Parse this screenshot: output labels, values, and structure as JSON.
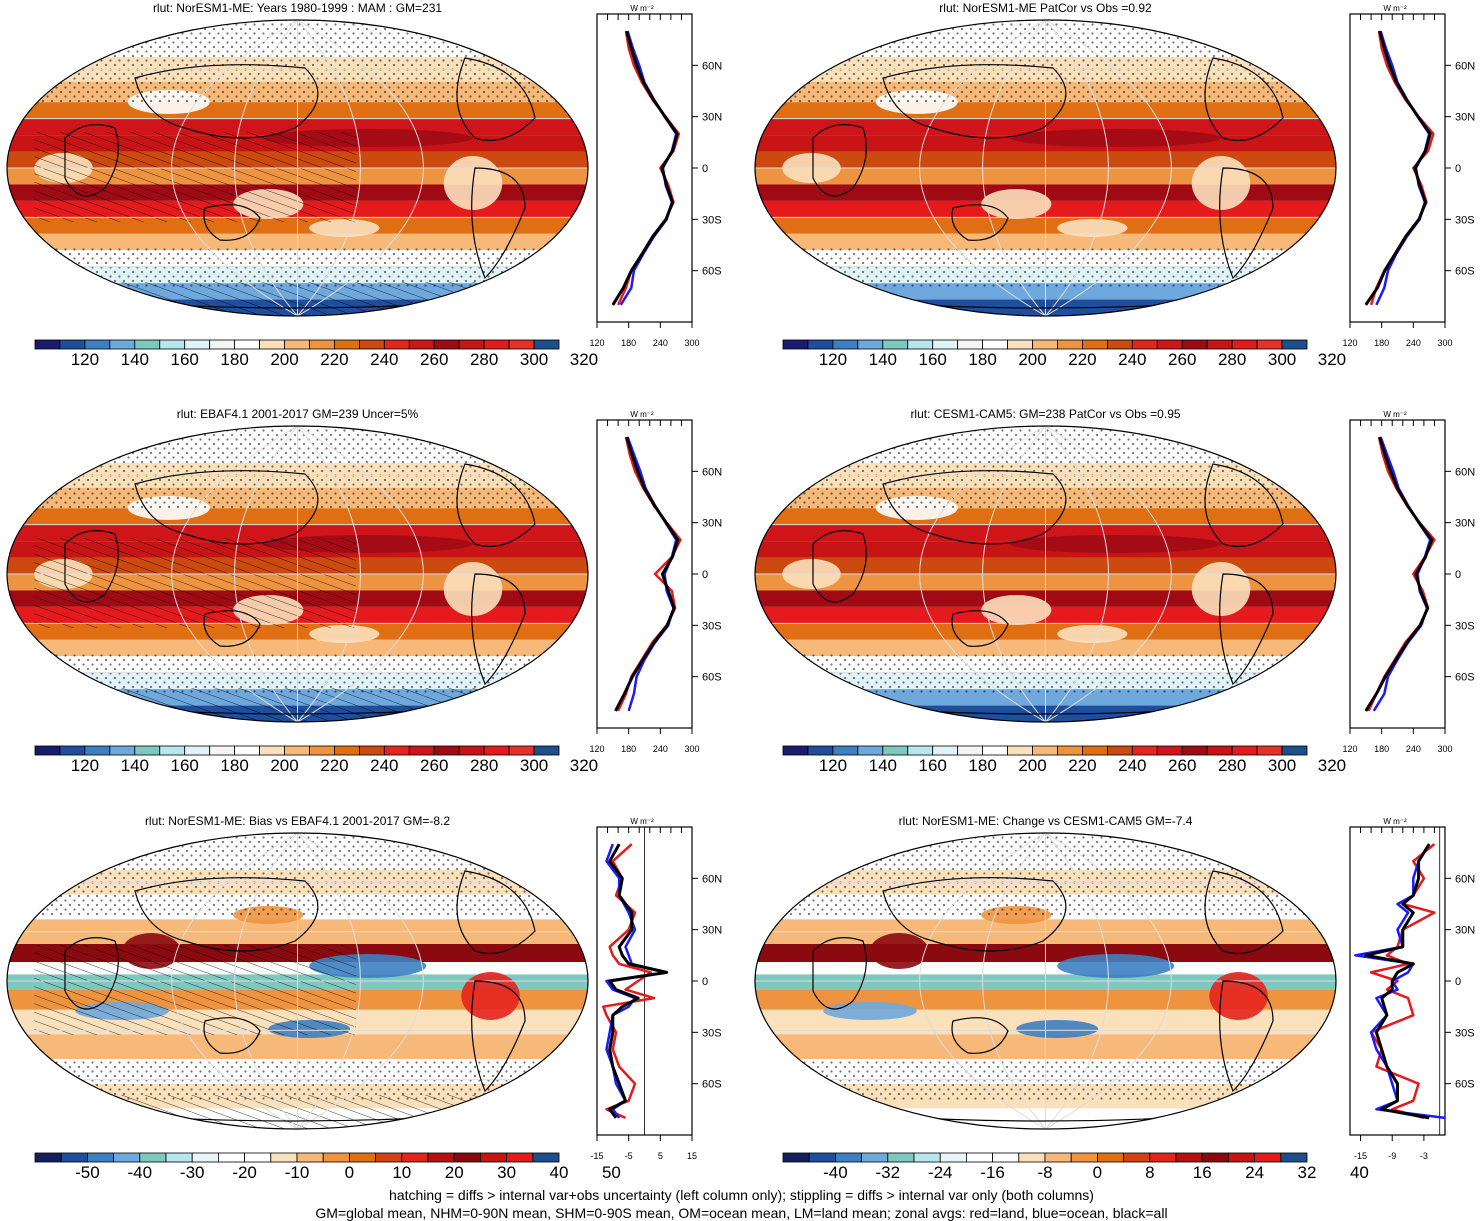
{
  "colors": {
    "abs_palette": [
      "#1a1a6e",
      "#1f4e9c",
      "#3d7fc1",
      "#6fa8dc",
      "#7fc8c0",
      "#b8e6ee",
      "#e0f4f8",
      "#f5f5f5",
      "#ffffff",
      "#fbe0bc",
      "#f6b97a",
      "#ee9440",
      "#e06f14",
      "#cc4a10",
      "#e5241e",
      "#d0151a",
      "#a00a14",
      "#c81414",
      "#e41a1c",
      "#e8302a",
      "#1c4f8c"
    ],
    "diff_palette": [
      "#14205e",
      "#1f4e9c",
      "#3d7fc1",
      "#6fa8dc",
      "#7fc8c0",
      "#b8e6ee",
      "#e8f6f8",
      "#ffffff",
      "#ffffff",
      "#fbe0bc",
      "#f6b97a",
      "#ee9440",
      "#e06f14",
      "#d64018",
      "#e5241e",
      "#b81010",
      "#8a0a10",
      "#c81414",
      "#e41a1c",
      "#1c4f8c"
    ],
    "land": "#e41a1c",
    "ocean": "#1a1aff",
    "all": "#000000"
  },
  "panels": [
    {
      "title": "rlut: NorESM1-ME: Years 1980-1999 : MAM : GM=231",
      "kind": "abs",
      "hatch": true,
      "stipple": true,
      "colorbar_labels": [
        "120",
        "140",
        "160",
        "180",
        "200",
        "220",
        "240",
        "260",
        "280",
        "300",
        "320"
      ],
      "zonal": {
        "xticks": [
          "120",
          "180",
          "240",
          "300"
        ],
        "xlim": [
          120,
          300
        ],
        "unit": "W m⁻²",
        "lat_labels": [
          "60N",
          "30N",
          "0",
          "30S",
          "60S"
        ]
      }
    },
    {
      "title": "rlut: NorESM1-ME PatCor vs Obs =0.92",
      "kind": "abs",
      "hatch": false,
      "stipple": true,
      "colorbar_labels": [
        "120",
        "140",
        "160",
        "180",
        "200",
        "220",
        "240",
        "260",
        "280",
        "300",
        "320"
      ],
      "zonal": {
        "xticks": [
          "120",
          "180",
          "240",
          "300"
        ],
        "xlim": [
          120,
          300
        ],
        "unit": "W m⁻²",
        "lat_labels": [
          "60N",
          "30N",
          "0",
          "30S",
          "60S"
        ]
      }
    },
    {
      "title": "rlut: EBAF4.1 2001-2017 GM=239 Uncer=5%",
      "kind": "abs",
      "hatch": true,
      "stipple": true,
      "colorbar_labels": [
        "120",
        "140",
        "160",
        "180",
        "200",
        "220",
        "240",
        "260",
        "280",
        "300",
        "320"
      ],
      "zonal": {
        "xticks": [
          "120",
          "180",
          "240",
          "300"
        ],
        "xlim": [
          120,
          300
        ],
        "unit": "W m⁻²",
        "lat_labels": [
          "60N",
          "30N",
          "0",
          "30S",
          "60S"
        ]
      }
    },
    {
      "title": "rlut: CESM1-CAM5: GM=238 PatCor vs Obs =0.95",
      "kind": "abs",
      "hatch": false,
      "stipple": true,
      "colorbar_labels": [
        "120",
        "140",
        "160",
        "180",
        "200",
        "220",
        "240",
        "260",
        "280",
        "300",
        "320"
      ],
      "zonal": {
        "xticks": [
          "120",
          "180",
          "240",
          "300"
        ],
        "xlim": [
          120,
          300
        ],
        "unit": "W m⁻²",
        "lat_labels": [
          "60N",
          "30N",
          "0",
          "30S",
          "60S"
        ]
      }
    },
    {
      "title": "rlut: NorESM1-ME: Bias vs EBAF4.1 2001-2017 GM=-8.2",
      "kind": "diff",
      "hatch": true,
      "stipple": true,
      "colorbar_labels": [
        "-50",
        "-40",
        "-30",
        "-20",
        "-10",
        "0",
        "10",
        "20",
        "30",
        "40",
        "50"
      ],
      "zonal": {
        "xticks": [
          "-15",
          "-5",
          "5",
          "15"
        ],
        "xlim": [
          -15,
          15
        ],
        "unit": "W m⁻²",
        "lat_labels": [
          "60N",
          "30N",
          "0",
          "30S",
          "60S"
        ]
      }
    },
    {
      "title": "rlut: NorESM1-ME: Change vs CESM1-CAM5 GM=-7.4",
      "kind": "diff",
      "hatch": false,
      "stipple": true,
      "colorbar_labels": [
        "-40",
        "-32",
        "-24",
        "-16",
        "-8",
        "0",
        "8",
        "16",
        "24",
        "32",
        "40"
      ],
      "zonal": {
        "xticks": [
          "-15",
          "-9",
          "-3"
        ],
        "xlim": [
          -17,
          1
        ],
        "unit": "W m⁻²",
        "lat_labels": [
          "60N",
          "30N",
          "0",
          "30S",
          "60S"
        ]
      }
    }
  ],
  "footnote_lines": [
    "hatching = diffs > internal var+obs uncertainty (left column only); stippling = diffs > internal var only (both columns)",
    "GM=global mean, NHM=0-90N mean, SHM=0-90S mean, OM=ocean mean, LM=land mean; zonal avgs: red=land, blue=ocean, black=all"
  ],
  "chart_data": [
    {
      "type": "line",
      "title": "rlut: NorESM1-ME: Years 1980-1999 : MAM : GM=231",
      "xlabel": "W m⁻²",
      "xlim": [
        120,
        300
      ],
      "ylim": [
        -90,
        90
      ],
      "y": [
        -80,
        -70,
        -60,
        -50,
        -40,
        -30,
        -20,
        -10,
        0,
        10,
        20,
        30,
        40,
        50,
        60,
        70,
        80
      ],
      "series": [
        {
          "name": "red=land",
          "values": [
            160,
            175,
            185,
            205,
            225,
            250,
            265,
            255,
            240,
            265,
            275,
            250,
            225,
            205,
            190,
            180,
            175
          ]
        },
        {
          "name": "blue=ocean",
          "values": [
            165,
            185,
            190,
            208,
            228,
            252,
            262,
            250,
            245,
            262,
            270,
            248,
            228,
            210,
            200,
            188,
            178
          ]
        },
        {
          "name": "black=all",
          "values": [
            150,
            170,
            185,
            206,
            226,
            251,
            263,
            252,
            243,
            263,
            272,
            249,
            227,
            208,
            195,
            185,
            176
          ]
        }
      ]
    },
    {
      "type": "line",
      "title": "rlut: NorESM1-ME PatCor vs Obs =0.92",
      "xlabel": "W m⁻²",
      "xlim": [
        120,
        300
      ],
      "ylim": [
        -90,
        90
      ],
      "y": [
        -80,
        -70,
        -60,
        -50,
        -40,
        -30,
        -20,
        -10,
        0,
        10,
        20,
        30,
        40,
        50,
        60,
        70,
        80
      ],
      "series": [
        {
          "name": "red=land",
          "values": [
            160,
            170,
            185,
            205,
            225,
            250,
            265,
            255,
            240,
            268,
            278,
            250,
            225,
            205,
            190,
            180,
            175
          ]
        },
        {
          "name": "blue=ocean",
          "values": [
            170,
            185,
            192,
            208,
            228,
            252,
            262,
            250,
            245,
            262,
            270,
            248,
            228,
            210,
            200,
            188,
            178
          ]
        },
        {
          "name": "black=all",
          "values": [
            150,
            172,
            186,
            206,
            226,
            251,
            263,
            252,
            243,
            263,
            272,
            249,
            227,
            208,
            195,
            185,
            176
          ]
        }
      ]
    },
    {
      "type": "line",
      "title": "rlut: EBAF4.1 2001-2017 GM=239 Uncer=5%",
      "xlabel": "W m⁻²",
      "xlim": [
        120,
        300
      ],
      "ylim": [
        -90,
        90
      ],
      "y": [
        -80,
        -70,
        -60,
        -50,
        -40,
        -30,
        -20,
        -10,
        0,
        10,
        20,
        30,
        40,
        50,
        60,
        70,
        80
      ],
      "series": [
        {
          "name": "red=land",
          "values": [
            160,
            175,
            185,
            205,
            225,
            252,
            268,
            262,
            230,
            262,
            278,
            252,
            228,
            208,
            192,
            182,
            175
          ]
        },
        {
          "name": "blue=ocean",
          "values": [
            180,
            190,
            195,
            210,
            230,
            255,
            265,
            252,
            248,
            262,
            270,
            250,
            230,
            212,
            202,
            190,
            178
          ]
        },
        {
          "name": "black=all",
          "values": [
            155,
            172,
            187,
            207,
            228,
            253,
            266,
            255,
            244,
            263,
            273,
            251,
            229,
            210,
            197,
            186,
            176
          ]
        }
      ]
    },
    {
      "type": "line",
      "title": "rlut: CESM1-CAM5: GM=238 PatCor vs Obs =0.95",
      "xlabel": "W m⁻²",
      "xlim": [
        120,
        300
      ],
      "ylim": [
        -90,
        90
      ],
      "y": [
        -80,
        -70,
        -60,
        -50,
        -40,
        -30,
        -20,
        -10,
        0,
        10,
        20,
        30,
        40,
        50,
        60,
        70,
        80
      ],
      "series": [
        {
          "name": "red=land",
          "values": [
            155,
            170,
            185,
            205,
            225,
            252,
            268,
            258,
            240,
            262,
            280,
            252,
            228,
            208,
            192,
            182,
            175
          ]
        },
        {
          "name": "blue=ocean",
          "values": [
            165,
            185,
            192,
            210,
            230,
            255,
            266,
            252,
            248,
            262,
            272,
            250,
            230,
            212,
            202,
            190,
            178
          ]
        },
        {
          "name": "black=all",
          "values": [
            150,
            170,
            187,
            207,
            228,
            253,
            267,
            254,
            245,
            263,
            275,
            251,
            229,
            210,
            197,
            186,
            176
          ]
        }
      ]
    },
    {
      "type": "line",
      "title": "rlut: NorESM1-ME: Bias vs EBAF4.1 2001-2017 GM=-8.2",
      "xlabel": "W m⁻²",
      "xlim": [
        -15,
        15
      ],
      "ylim": [
        -90,
        90
      ],
      "y": [
        -80,
        -75,
        -70,
        -60,
        -50,
        -40,
        -30,
        -20,
        -15,
        -10,
        -5,
        0,
        5,
        10,
        15,
        20,
        30,
        40,
        50,
        60,
        70,
        80
      ],
      "series": [
        {
          "name": "red=land",
          "values": [
            -6,
            -12,
            -5,
            -3,
            -8,
            -10,
            -9,
            -12,
            -13,
            3,
            -6,
            -2,
            2,
            -8,
            -10,
            -11,
            -5,
            -3,
            -9,
            -7,
            -10,
            -4
          ]
        },
        {
          "name": "blue=ocean",
          "values": [
            -8,
            -10,
            -6,
            -9,
            -10,
            -12,
            -11,
            -10,
            -5,
            -3,
            -10,
            -12,
            7,
            -4,
            -5,
            -6,
            -3,
            -5,
            -8,
            -8,
            -12,
            -10
          ]
        },
        {
          "name": "black=all",
          "values": [
            -9,
            -11,
            -6,
            -8,
            -10,
            -11,
            -10,
            -10,
            -7,
            -2,
            -9,
            -11,
            7,
            -5,
            -7,
            -8,
            -4,
            -4,
            -8,
            -7,
            -11,
            -8
          ]
        }
      ]
    },
    {
      "type": "line",
      "title": "rlut: NorESM1-ME: Change vs CESM1-CAM5 GM=-7.4",
      "xlabel": "W m⁻²",
      "xlim": [
        -17,
        1
      ],
      "ylim": [
        -90,
        90
      ],
      "y": [
        -80,
        -75,
        -70,
        -60,
        -50,
        -40,
        -30,
        -20,
        -10,
        -5,
        0,
        5,
        10,
        15,
        20,
        30,
        40,
        45,
        50,
        60,
        70,
        80
      ],
      "series": [
        {
          "name": "red=land",
          "values": [
            -3,
            -9,
            -5,
            -4,
            -12,
            -11,
            -13,
            -5,
            -6,
            -10,
            -8,
            -13,
            -6,
            -10,
            -8,
            -7,
            -1,
            -7,
            -5,
            -3,
            -5,
            -1
          ]
        },
        {
          "name": "blue=ocean",
          "values": [
            1,
            -12,
            -8,
            -9,
            -10,
            -12,
            -13,
            -10,
            -12,
            -8,
            -9,
            -6,
            -5,
            -16,
            -7,
            -8,
            -6,
            -8,
            -5,
            -5,
            -4,
            -2
          ]
        },
        {
          "name": "black=all",
          "values": [
            -2,
            -11,
            -8,
            -8,
            -10,
            -11,
            -12,
            -10,
            -11,
            -9,
            -9,
            -8,
            -5,
            -14,
            -7,
            -7,
            -5,
            -7,
            -5,
            -4,
            -4,
            -2
          ]
        }
      ]
    }
  ]
}
